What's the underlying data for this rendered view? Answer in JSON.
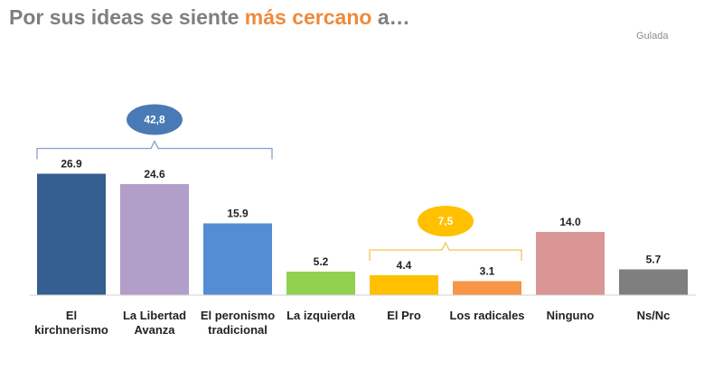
{
  "title": {
    "part1": "Por sus ideas se siente ",
    "highlight": "más cercano",
    "part2": " a…"
  },
  "source": "Gulada",
  "chart_data": {
    "type": "bar",
    "categories": [
      [
        "El",
        "kirchnerismo"
      ],
      [
        "La Libertad",
        "Avanza"
      ],
      [
        "El peronismo",
        "tradicional"
      ],
      [
        "La izquierda"
      ],
      [
        "El Pro"
      ],
      [
        "Los radicales"
      ],
      [
        "Ninguno"
      ],
      [
        "Ns/Nc"
      ]
    ],
    "values": [
      26.9,
      24.6,
      15.9,
      5.2,
      4.4,
      3.1,
      14.0,
      5.7
    ],
    "value_labels": [
      "26.9",
      "24.6",
      "15.9",
      "5.2",
      "4.4",
      "3.1",
      "14.0",
      "5.7"
    ],
    "colors": [
      "#355e91",
      "#b19fc9",
      "#548dd4",
      "#92d050",
      "#ffc000",
      "#f79646",
      "#da9694",
      "#7f7f7f"
    ],
    "ylim": [
      0,
      30
    ],
    "groups": [
      {
        "label": "42,8",
        "from": 0,
        "to": 2,
        "color": "#4a7ab5",
        "bracket_color": "#7fa1cb"
      },
      {
        "label": "7,5",
        "from": 4,
        "to": 5,
        "color": "#ffc000",
        "bracket_color": "#f5c451"
      }
    ]
  }
}
